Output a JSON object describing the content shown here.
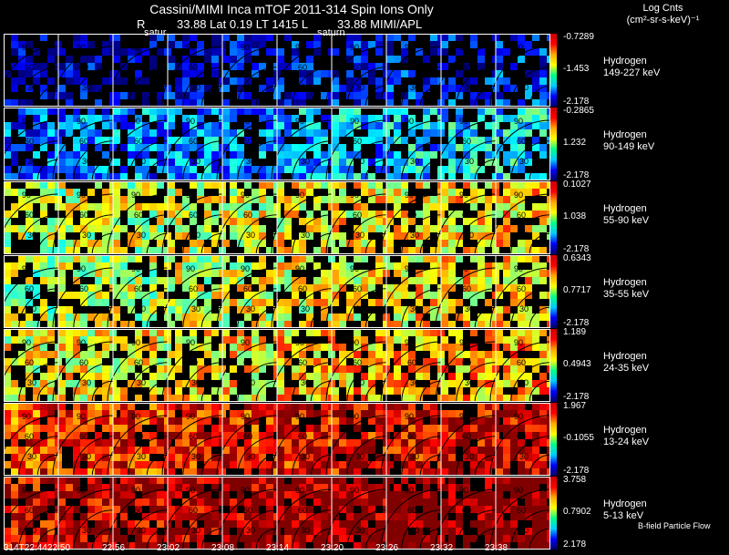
{
  "header": {
    "title": "Cassini/MIMI Inca mTOF  2011-314   Spin    Ions Only",
    "r_label": "R",
    "position_line": "33.88  Lat 0.19 LT 1415  L",
    "l_value": "33.88   MIMI/APL",
    "units_line1": "Log Cnts",
    "units_line2": "(cm²-sr-s-keV)⁻¹"
  },
  "stamps": {
    "left": "satur",
    "right": "saturn"
  },
  "rows": [
    {
      "species": "Hydrogen",
      "energy": "149-227 keV",
      "max": "-0.7289",
      "mid": "-1.453",
      "min": "-2.178",
      "level": 0.05
    },
    {
      "species": "Hydrogen",
      "energy": "90-149 keV",
      "max": "-0.2865",
      "mid": "1.232",
      "min": "-2.178",
      "level": 0.22
    },
    {
      "species": "Hydrogen",
      "energy": "55-90 keV",
      "max": "0.1027",
      "mid": "1.038",
      "min": "-2.178",
      "level": 0.55
    },
    {
      "species": "Hydrogen",
      "energy": "35-55 keV",
      "max": "0.6343",
      "mid": "0.7717",
      "min": "-2.178",
      "level": 0.55
    },
    {
      "species": "Hydrogen",
      "energy": "24-35 keV",
      "max": "1.189",
      "mid": "0.4943",
      "min": "-2.178",
      "level": 0.6
    },
    {
      "species": "Hydrogen",
      "energy": "13-24 keV",
      "max": "1.967",
      "mid": "-0.1055",
      "min": "-2.178",
      "level": 0.82
    },
    {
      "species": "Hydrogen",
      "energy": "5-13 keV",
      "max": "3.758",
      "mid": "0.7902",
      "min": "2.178",
      "level": 0.93
    }
  ],
  "contour_labels": [
    "90",
    "60",
    "30"
  ],
  "time_ticks": [
    "314T22:44",
    "22:50",
    "22:56",
    "23:02",
    "23:08",
    "23:14",
    "23:20",
    "23:26",
    "23:32",
    "23:38"
  ],
  "footer": "B-field Particle Flow"
}
